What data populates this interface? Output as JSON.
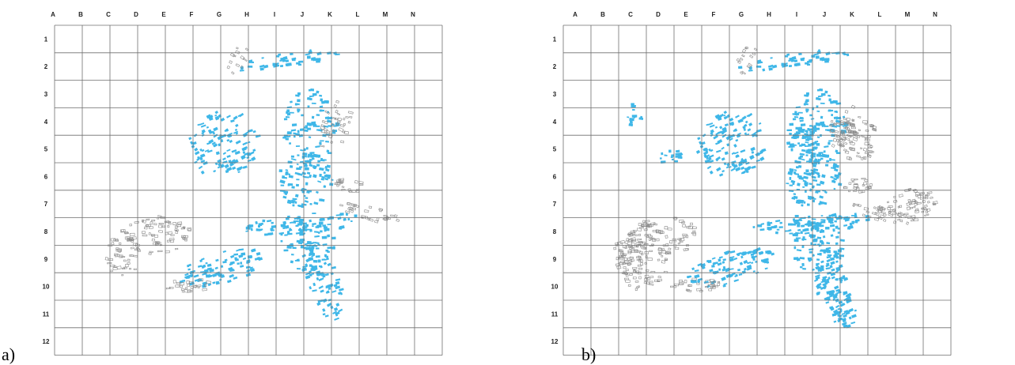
{
  "colors": {
    "highlight": "#3fb7e8",
    "other": "#8a8a8a",
    "grid": "#6f6f6f"
  },
  "grid": {
    "columns": [
      "A",
      "B",
      "C",
      "D",
      "E",
      "F",
      "G",
      "H",
      "I",
      "J",
      "K",
      "L",
      "M",
      "N"
    ],
    "rows": [
      "1",
      "2",
      "3",
      "4",
      "5",
      "6",
      "7",
      "8",
      "9",
      "10",
      "11",
      "12"
    ]
  },
  "panels": [
    {
      "id": "a",
      "label": "a)",
      "variant": "a"
    },
    {
      "id": "b",
      "label": "b)",
      "variant": "b"
    }
  ]
}
